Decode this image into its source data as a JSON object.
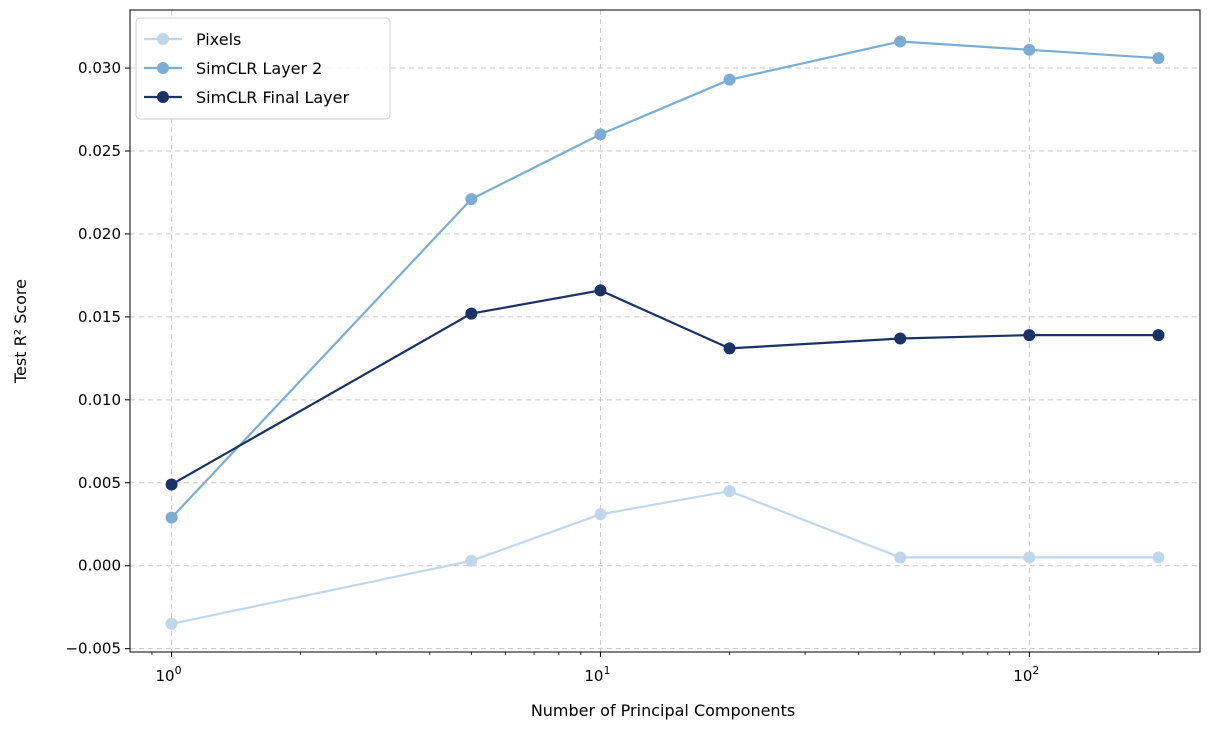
{
  "chart_data": {
    "type": "line",
    "xlabel": "Number of Principal Components",
    "ylabel": "Test R² Score",
    "xscale": "log",
    "xlim": [
      0.8,
      250
    ],
    "ylim": [
      -0.0052,
      0.0335
    ],
    "grid": true,
    "legend_position": "top-left",
    "x": [
      1,
      5,
      10,
      20,
      50,
      100,
      200
    ],
    "x_ticks": [
      {
        "value": 1,
        "base": "10",
        "exp": "0"
      },
      {
        "value": 10,
        "base": "10",
        "exp": "1"
      },
      {
        "value": 100,
        "base": "10",
        "exp": "2"
      }
    ],
    "y_ticks": [
      {
        "value": -0.005,
        "label": "−0.005"
      },
      {
        "value": 0.0,
        "label": "0.000"
      },
      {
        "value": 0.005,
        "label": "0.005"
      },
      {
        "value": 0.01,
        "label": "0.010"
      },
      {
        "value": 0.015,
        "label": "0.015"
      },
      {
        "value": 0.02,
        "label": "0.020"
      },
      {
        "value": 0.025,
        "label": "0.025"
      },
      {
        "value": 0.03,
        "label": "0.030"
      }
    ],
    "series": [
      {
        "name": "Pixels",
        "color": "#c0d6ea",
        "values": [
          -0.0035,
          0.0003,
          0.0031,
          0.0045,
          0.0005,
          0.0005,
          0.0005
        ]
      },
      {
        "name": "SimCLR Layer 2",
        "color": "#7badd4",
        "values": [
          0.0029,
          0.0221,
          0.026,
          0.0293,
          0.0316,
          0.0311,
          0.0306
        ]
      },
      {
        "name": "SimCLR Final Layer",
        "color": "#1a3266",
        "values": [
          0.0049,
          0.0152,
          0.0166,
          0.0131,
          0.0137,
          0.0139,
          0.0139
        ]
      }
    ]
  }
}
